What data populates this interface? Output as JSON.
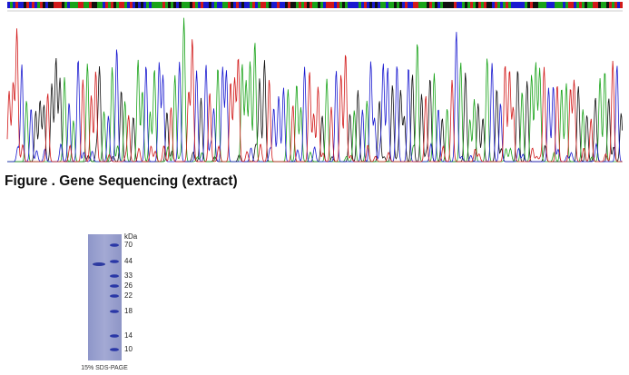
{
  "caption": "Figure . Gene Sequencing (extract)",
  "gel": {
    "unit": "kDa",
    "markers": [
      "70",
      "44",
      "33",
      "26",
      "22",
      "18",
      "14",
      "10"
    ],
    "label": "15% SDS-PAGE"
  }
}
